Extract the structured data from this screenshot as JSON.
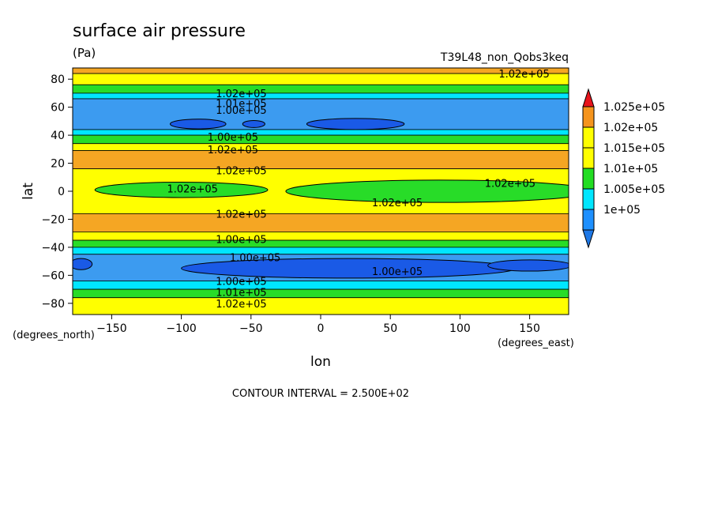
{
  "chart_data": {
    "type": "heatmap",
    "title": "surface air pressure",
    "units": "(Pa)",
    "run_label": "T39L48_non_Qobs3keq",
    "xlabel": "lon",
    "ylabel": "lat",
    "x_units_label": "(degrees_east)",
    "y_units_label": "(degrees_north)",
    "xlim": [
      -178,
      178
    ],
    "ylim": [
      -88,
      88
    ],
    "x_ticks": [
      -150,
      -100,
      -50,
      0,
      50,
      100,
      150
    ],
    "y_ticks": [
      -80,
      -60,
      -40,
      -20,
      0,
      20,
      40,
      60,
      80
    ],
    "contour_interval_text": "CONTOUR INTERVAL = 2.500E+02",
    "legend": {
      "levels": [
        {
          "label": "1.025e+05",
          "color": "#f5941d"
        },
        {
          "label": "1.02e+05",
          "color": "#ffff00"
        },
        {
          "label": "1.015e+05",
          "color": "#ffff00"
        },
        {
          "label": "1.01e+05",
          "color": "#22dd22"
        },
        {
          "label": "1.005e+05",
          "color": "#00e6ff"
        },
        {
          "label": "1e+05",
          "color": "#1e90ff"
        }
      ],
      "over_color": "#e8141c",
      "under_color": "#1e78e6"
    },
    "colors": {
      "darkblue": "#1a5ae6",
      "blue": "#3c9bf0",
      "cyan": "#00e6ff",
      "green": "#28dc28",
      "yellow": "#ffff00",
      "orange": "#f5a623"
    },
    "lat_bands": [
      {
        "lat_max": 88,
        "lat_min": 84,
        "color": "orange"
      },
      {
        "lat_max": 84,
        "lat_min": 76,
        "color": "yellow"
      },
      {
        "lat_max": 76,
        "lat_min": 70,
        "color": "green"
      },
      {
        "lat_max": 70,
        "lat_min": 66,
        "color": "cyan"
      },
      {
        "lat_max": 66,
        "lat_min": 44,
        "color": "blue"
      },
      {
        "lat_max": 44,
        "lat_min": 40,
        "color": "cyan"
      },
      {
        "lat_max": 40,
        "lat_min": 34,
        "color": "green"
      },
      {
        "lat_max": 34,
        "lat_min": 29,
        "color": "yellow"
      },
      {
        "lat_max": 29,
        "lat_min": 16,
        "color": "orange"
      },
      {
        "lat_max": 16,
        "lat_min": -16,
        "color": "yellow"
      },
      {
        "lat_max": -16,
        "lat_min": -29,
        "color": "orange"
      },
      {
        "lat_max": -29,
        "lat_min": -35,
        "color": "yellow"
      },
      {
        "lat_max": -35,
        "lat_min": -40,
        "color": "green"
      },
      {
        "lat_max": -40,
        "lat_min": -45,
        "color": "cyan"
      },
      {
        "lat_max": -45,
        "lat_min": -64,
        "color": "blue"
      },
      {
        "lat_max": -64,
        "lat_min": -70,
        "color": "cyan"
      },
      {
        "lat_max": -70,
        "lat_min": -76,
        "color": "green"
      },
      {
        "lat_max": -76,
        "lat_min": -88,
        "color": "yellow"
      }
    ],
    "regions": [
      {
        "color": "darkblue",
        "cx": -88,
        "cy": 48,
        "rx": 20,
        "ry": 3.5
      },
      {
        "color": "darkblue",
        "cx": -48,
        "cy": 48,
        "rx": 8,
        "ry": 2.5
      },
      {
        "color": "darkblue",
        "cx": 25,
        "cy": 48,
        "rx": 35,
        "ry": 4
      },
      {
        "color": "darkblue",
        "cx": 20,
        "cy": -55,
        "rx": 120,
        "ry": 7
      },
      {
        "color": "darkblue",
        "cx": -172,
        "cy": -52,
        "rx": 8,
        "ry": 4
      },
      {
        "color": "darkblue",
        "cx": 150,
        "cy": -53,
        "rx": 30,
        "ry": 4
      },
      {
        "color": "green",
        "cx": 85,
        "cy": 0,
        "rx": 110,
        "ry": 8
      },
      {
        "color": "green",
        "cx": -100,
        "cy": 1,
        "rx": 62,
        "ry": 5.5
      }
    ],
    "contour_labels": [
      {
        "text": "1.02e+05",
        "lon": 146,
        "lat": 84
      },
      {
        "text": "1.02e+05",
        "lon": -57,
        "lat": 70
      },
      {
        "text": "1.01e+05",
        "lon": -57,
        "lat": 63
      },
      {
        "text": "1.00e+05",
        "lon": -57,
        "lat": 58
      },
      {
        "text": "1.00e+05",
        "lon": -63,
        "lat": 39
      },
      {
        "text": "1.02e+05",
        "lon": -63,
        "lat": 30
      },
      {
        "text": "1.02e+05",
        "lon": -57,
        "lat": 15
      },
      {
        "text": "1.02e+05",
        "lon": -92,
        "lat": 2
      },
      {
        "text": "1.02e+05",
        "lon": 136,
        "lat": 6
      },
      {
        "text": "1.02e+05",
        "lon": 55,
        "lat": -8
      },
      {
        "text": "1.02e+05",
        "lon": -57,
        "lat": -16
      },
      {
        "text": "1.00e+05",
        "lon": -57,
        "lat": -34
      },
      {
        "text": "1.00e+05",
        "lon": -47,
        "lat": -47
      },
      {
        "text": "1.00e+05",
        "lon": 55,
        "lat": -57
      },
      {
        "text": "1.00e+05",
        "lon": -57,
        "lat": -64
      },
      {
        "text": "1.01e+05",
        "lon": -57,
        "lat": -72
      },
      {
        "text": "1.02e+05",
        "lon": -57,
        "lat": -80
      }
    ]
  }
}
